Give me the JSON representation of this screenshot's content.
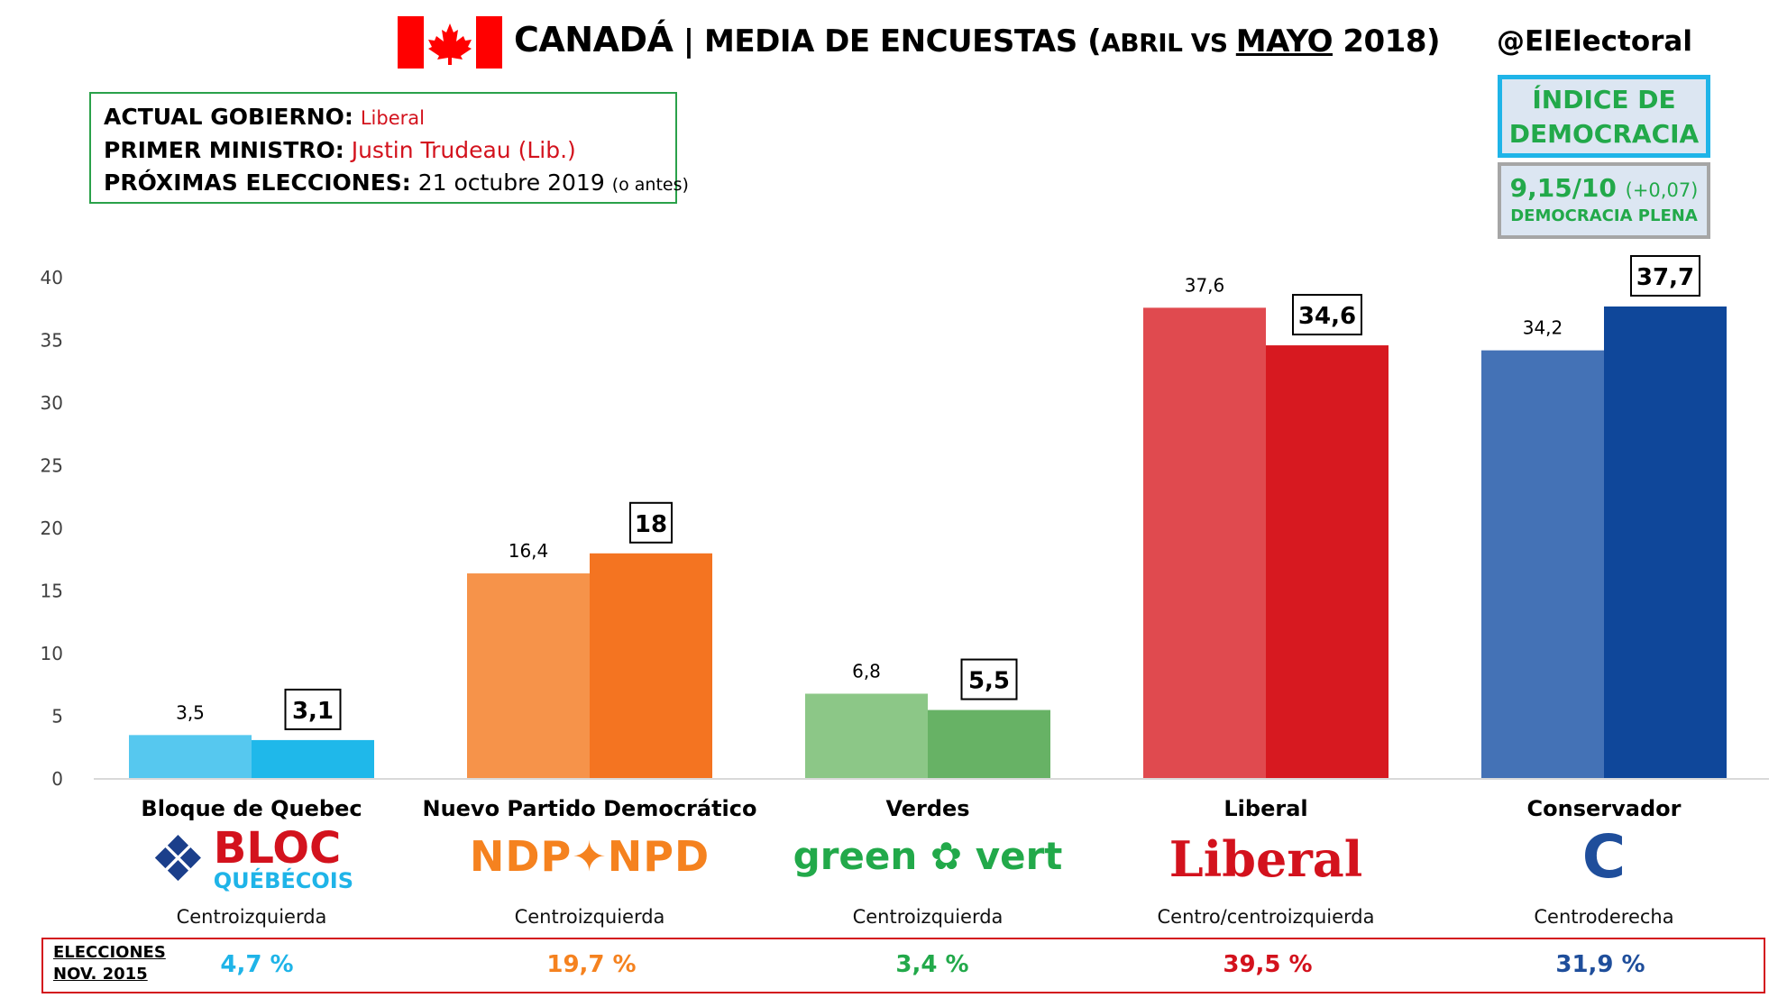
{
  "header": {
    "title_main": "CANADÁ",
    "title_sep": " | MEDIA DE ENCUESTAS (",
    "title_abril": "ABRIL VS ",
    "title_mayo": "MAYO",
    "title_end": " 2018)",
    "handle": "@ElElectoral"
  },
  "info": {
    "gov_label": "ACTUAL GOBIERNO:",
    "gov_value": "Liberal",
    "pm_label": "PRIMER MINISTRO:",
    "pm_value": "Justin Trudeau (Lib.)",
    "next_label": "PRÓXIMAS ELECCIONES:",
    "next_value": "21 octubre 2019",
    "next_note": "(o antes)"
  },
  "democracy": {
    "title_line1": "ÍNDICE DE",
    "title_line2": "DEMOCRACIA",
    "score": "9,15/10",
    "delta": "(+0,07)",
    "category": "DEMOCRACIA PLENA",
    "accent": "#22a94a",
    "border": "#1fb4e8"
  },
  "parties": [
    {
      "name": "Bloque de Quebec",
      "logo_line1": "BLOC",
      "logo_line2": "QUÉBÉCOIS",
      "ideology": "Centroizquierda",
      "result_2015": "4,7 %",
      "color": "#1fb4e8"
    },
    {
      "name": "Nuevo Partido Democrático",
      "logo_line1": "NDP✦NPD",
      "ideology": "Centroizquierda",
      "result_2015": "19,7 %",
      "color": "#f5821f"
    },
    {
      "name": "Verdes",
      "logo_line1": "green ✿ vert",
      "ideology": "Centroizquierda",
      "result_2015": "3,4 %",
      "color": "#22a94a"
    },
    {
      "name": "Liberal",
      "logo_line1": "Liberal",
      "ideology": "Centro/centroizquierda",
      "result_2015": "39,5 %",
      "color": "#d3121d"
    },
    {
      "name": "Conservador",
      "logo_line1": "C",
      "ideology": "Centroderecha",
      "result_2015": "31,9 %",
      "color": "#1f4e9b"
    }
  ],
  "results": {
    "label_line1": "ELECCIONES",
    "label_line2": "NOV. 2015"
  },
  "chart_data": {
    "type": "bar",
    "categories": [
      "Bloque de Quebec",
      "Nuevo Partido Democrático",
      "Verdes",
      "Liberal",
      "Conservador"
    ],
    "series": [
      {
        "name": "ABRIL",
        "values": [
          3.5,
          16.4,
          6.8,
          37.6,
          34.2
        ],
        "labels": [
          "3,5",
          "16,4",
          "6,8",
          "37,6",
          "34,2"
        ],
        "colors": [
          "#56c8ef",
          "#f6934a",
          "#8cc787",
          "#e04a4f",
          "#4472b6"
        ]
      },
      {
        "name": "MAYO",
        "values": [
          3.1,
          18,
          5.5,
          34.6,
          37.7
        ],
        "labels": [
          "3,1",
          "18",
          "5,5",
          "34,6",
          "37,7"
        ],
        "colors": [
          "#1fb8ea",
          "#f47421",
          "#67b265",
          "#d71920",
          "#0f479a"
        ]
      }
    ],
    "yticks": [
      "0",
      "5",
      "10",
      "15",
      "20",
      "25",
      "30",
      "35",
      "40"
    ],
    "ylim": [
      0,
      40
    ],
    "grid": false,
    "legend": "none"
  }
}
